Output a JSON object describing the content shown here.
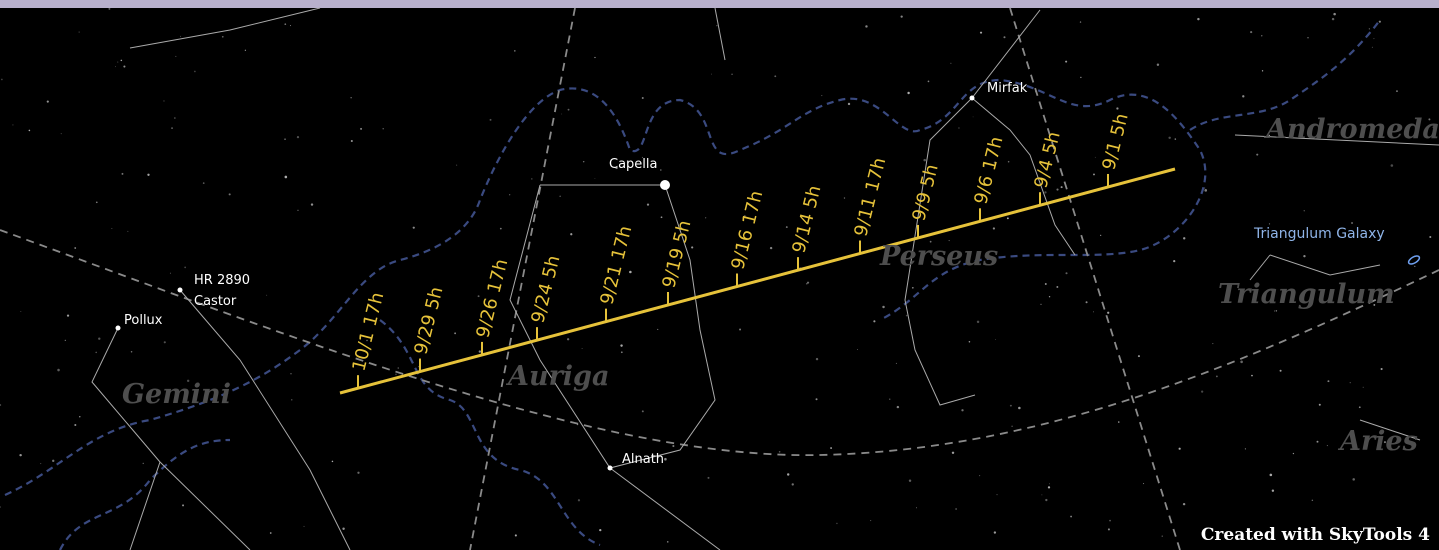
{
  "constellations": [
    "Andromeda",
    "Perseus",
    "Triangulum",
    "Auriga",
    "Gemini",
    "Aries"
  ],
  "stars": [
    "Mirfak",
    "Capella",
    "HR 2890",
    "Castor",
    "Pollux",
    "Alnath",
    "Triangulum Galaxy"
  ],
  "path": {
    "labels": [
      "10/1 17h",
      "9/29 5h",
      "9/26 17h",
      "9/24 5h",
      "9/21 17h",
      "9/19 5h",
      "9/16 17h",
      "9/14 5h",
      "9/11 17h",
      "9/9 5h",
      "9/6 17h",
      "9/4 5h",
      "9/1 5h"
    ]
  },
  "credit": "Created with SkyTools 4"
}
